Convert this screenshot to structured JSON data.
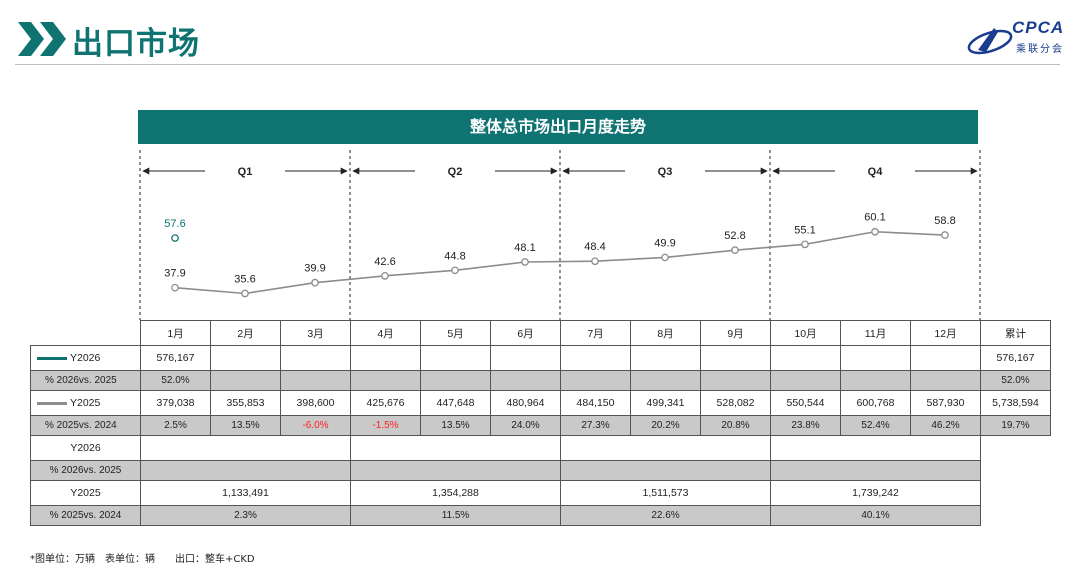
{
  "header": {
    "title": "出口市场",
    "logo_text": "CPCA",
    "logo_subtext": "乘联分会"
  },
  "banner_title": "整体总市场出口月度走势",
  "colors": {
    "teal": "#0f7372",
    "y2025": "#8c8c8c",
    "y2026": "#0f7372",
    "negative": "#ff2020"
  },
  "quarters": [
    "Q1",
    "Q2",
    "Q3",
    "Q4"
  ],
  "chart_data": {
    "type": "line",
    "categories": [
      "1月",
      "2月",
      "3月",
      "4月",
      "5月",
      "6月",
      "7月",
      "8月",
      "9月",
      "10月",
      "11月",
      "12月"
    ],
    "series": [
      {
        "name": "Y2026",
        "values": [
          57.6,
          null,
          null,
          null,
          null,
          null,
          null,
          null,
          null,
          null,
          null,
          null
        ]
      },
      {
        "name": "Y2025",
        "values": [
          37.9,
          35.6,
          39.9,
          42.6,
          44.8,
          48.1,
          48.4,
          49.9,
          52.8,
          55.1,
          60.1,
          58.8
        ]
      }
    ],
    "ylim": [
      20,
      65
    ],
    "unit_note": "*图单位：万辆",
    "grid": false
  },
  "table": {
    "total_header": "累计",
    "y2026": {
      "label": "Y2026",
      "values": [
        "576,167",
        "",
        "",
        "",
        "",
        "",
        "",
        "",
        "",
        "",
        "",
        ""
      ],
      "total": "576,167"
    },
    "y2026_pct": {
      "label": "% 2026vs. 2025",
      "values": [
        "52.0%",
        "",
        "",
        "",
        "",
        "",
        "",
        "",
        "",
        "",
        "",
        ""
      ],
      "total": "52.0%"
    },
    "y2025": {
      "label": "Y2025",
      "values": [
        "379,038",
        "355,853",
        "398,600",
        "425,676",
        "447,648",
        "480,964",
        "484,150",
        "499,341",
        "528,082",
        "550,544",
        "600,768",
        "587,930"
      ],
      "total": "5,738,594"
    },
    "y2025_pct": {
      "label": "% 2025vs. 2024",
      "values": [
        "2.5%",
        "13.5%",
        "-6.0%",
        "-1.5%",
        "13.5%",
        "24.0%",
        "27.3%",
        "20.2%",
        "20.8%",
        "23.8%",
        "52.4%",
        "46.2%"
      ],
      "total": "19.7%"
    },
    "q_y2026": {
      "label": "Y2026",
      "values": [
        "",
        "",
        "",
        ""
      ]
    },
    "q_y2026_pct": {
      "label": "% 2026vs. 2025",
      "values": [
        "",
        "",
        "",
        ""
      ]
    },
    "q_y2025": {
      "label": "Y2025",
      "values": [
        "1,133,491",
        "1,354,288",
        "1,511,573",
        "1,739,242"
      ]
    },
    "q_y2025_pct": {
      "label": "% 2025vs. 2024",
      "values": [
        "2.3%",
        "11.5%",
        "22.6%",
        "40.1%"
      ]
    }
  },
  "footnote": "*图单位：万辆　表单位：辆　　出口：整车+CKD"
}
